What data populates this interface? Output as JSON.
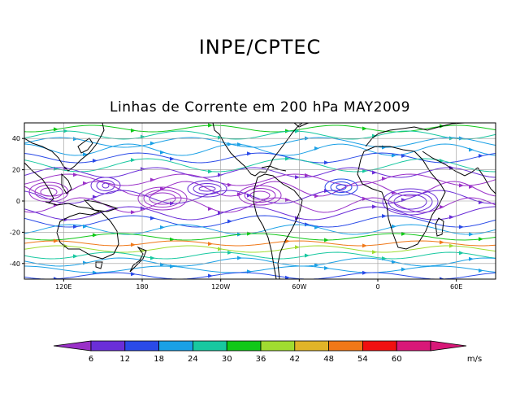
{
  "header": {
    "institution": "INPE/CPTEC",
    "subtitle": "Linhas de Corrente em 200 hPa MAY2009"
  },
  "map": {
    "projection": "equirectangular",
    "lon_range": [
      90,
      450
    ],
    "lat_range": [
      -50,
      50
    ],
    "grid": true,
    "lat_ticks": [
      {
        "value": 40,
        "label": "40"
      },
      {
        "value": 20,
        "label": "20"
      },
      {
        "value": 0,
        "label": "0"
      },
      {
        "value": -20,
        "label": "-20"
      },
      {
        "value": -40,
        "label": "-40"
      }
    ],
    "lon_ticks": [
      {
        "value": 120,
        "label": "120E"
      },
      {
        "value": 180,
        "label": "180"
      },
      {
        "value": 240,
        "label": "120W"
      },
      {
        "value": 300,
        "label": "60W"
      },
      {
        "value": 360,
        "label": "0"
      },
      {
        "value": 420,
        "label": "60E"
      }
    ]
  },
  "colorbar": {
    "unit": "m/s",
    "labels": [
      "6",
      "12",
      "18",
      "24",
      "30",
      "36",
      "42",
      "48",
      "54",
      "60"
    ],
    "colors": [
      "#9a30c8",
      "#6a2ed8",
      "#2a4ae8",
      "#1aa0e6",
      "#18c8a0",
      "#10c818",
      "#a0dc30",
      "#e0b428",
      "#f07818",
      "#f01010",
      "#d81878"
    ]
  }
}
